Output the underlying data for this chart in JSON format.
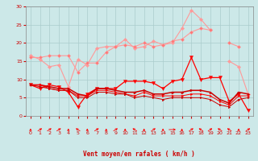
{
  "x": [
    0,
    1,
    2,
    3,
    4,
    5,
    6,
    7,
    8,
    9,
    10,
    11,
    12,
    13,
    14,
    15,
    16,
    17,
    18,
    19,
    20,
    21,
    22,
    23
  ],
  "line1": [
    16.5,
    15.5,
    13.5,
    14.0,
    8.0,
    15.5,
    14.0,
    18.5,
    19.0,
    19.0,
    21.0,
    18.5,
    19.0,
    20.5,
    19.5,
    20.0,
    24.0,
    29.0,
    26.5,
    23.5,
    null,
    15.0,
    13.5,
    6.0
  ],
  "line2": [
    16.0,
    16.0,
    16.5,
    16.5,
    16.5,
    12.0,
    14.5,
    14.5,
    17.5,
    19.0,
    19.5,
    19.0,
    20.0,
    19.0,
    19.5,
    20.5,
    21.0,
    23.0,
    24.0,
    23.5,
    null,
    20.0,
    19.0,
    null
  ],
  "line3": [
    8.5,
    7.5,
    8.5,
    8.0,
    6.5,
    2.5,
    6.0,
    7.5,
    7.5,
    7.5,
    9.5,
    9.5,
    9.5,
    9.0,
    7.5,
    9.5,
    10.0,
    16.0,
    10.0,
    10.5,
    10.5,
    4.0,
    6.0,
    1.5
  ],
  "line4": [
    8.5,
    8.5,
    8.0,
    7.5,
    7.5,
    6.0,
    5.5,
    7.5,
    7.5,
    7.0,
    6.5,
    6.5,
    7.0,
    6.0,
    6.0,
    6.5,
    6.5,
    7.0,
    7.0,
    6.5,
    4.5,
    3.5,
    6.5,
    6.0
  ],
  "line5": [
    8.5,
    8.5,
    7.5,
    7.0,
    7.0,
    5.5,
    5.5,
    7.0,
    7.0,
    6.5,
    6.0,
    5.5,
    6.5,
    5.5,
    5.5,
    5.5,
    5.5,
    6.0,
    6.0,
    5.5,
    4.0,
    3.0,
    5.5,
    5.5
  ],
  "line6": [
    8.5,
    8.0,
    7.5,
    7.0,
    7.0,
    5.0,
    5.0,
    6.5,
    6.5,
    6.0,
    6.0,
    5.0,
    5.5,
    5.0,
    4.5,
    5.0,
    5.0,
    5.0,
    5.0,
    4.5,
    3.0,
    2.5,
    4.5,
    5.0
  ],
  "color_light_pink": "#ff9999",
  "color_pink": "#ff7777",
  "color_dark_red": "#cc0000",
  "color_red": "#ff0000",
  "bg_color": "#cce8e8",
  "grid_color": "#aacccc",
  "text_color": "#cc0000",
  "xlim": [
    -0.5,
    23.5
  ],
  "ylim": [
    0,
    30
  ],
  "yticks": [
    0,
    5,
    10,
    15,
    20,
    25,
    30
  ],
  "xticks": [
    0,
    1,
    2,
    3,
    4,
    5,
    6,
    7,
    8,
    9,
    10,
    11,
    12,
    13,
    14,
    15,
    16,
    17,
    18,
    19,
    20,
    21,
    22,
    23
  ],
  "xlabel": "Vent moyen/en rafales ( km/h )",
  "wind_dirs": [
    0,
    45,
    45,
    45,
    0,
    315,
    0,
    45,
    0,
    45,
    0,
    315,
    0,
    45,
    0,
    90,
    0,
    45,
    315,
    45,
    315,
    315,
    0,
    45
  ]
}
